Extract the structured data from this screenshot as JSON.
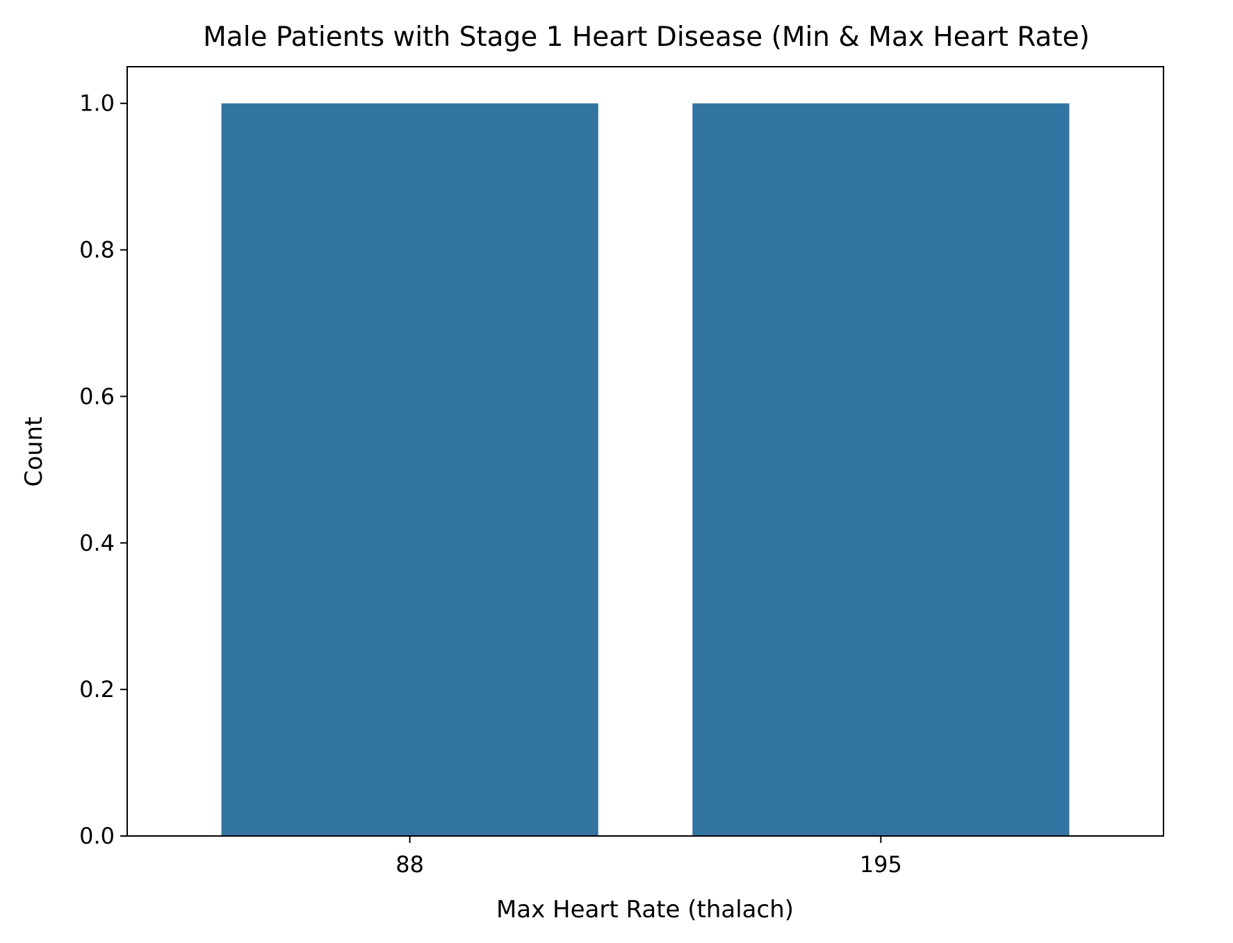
{
  "chart_data": {
    "type": "bar",
    "title": "Male Patients with Stage 1 Heart Disease (Min & Max Heart Rate)",
    "xlabel": "Max Heart Rate (thalach)",
    "ylabel": "Count",
    "categories": [
      "88",
      "195"
    ],
    "values": [
      1.0,
      1.0
    ],
    "ylim": [
      0,
      1.05
    ],
    "yticks": [
      0.0,
      0.2,
      0.4,
      0.6,
      0.8,
      1.0
    ],
    "ytick_labels": [
      "0.0",
      "0.2",
      "0.4",
      "0.6",
      "0.8",
      "1.0"
    ],
    "bar_color": "#3274a1",
    "grid": false,
    "legend": false
  }
}
